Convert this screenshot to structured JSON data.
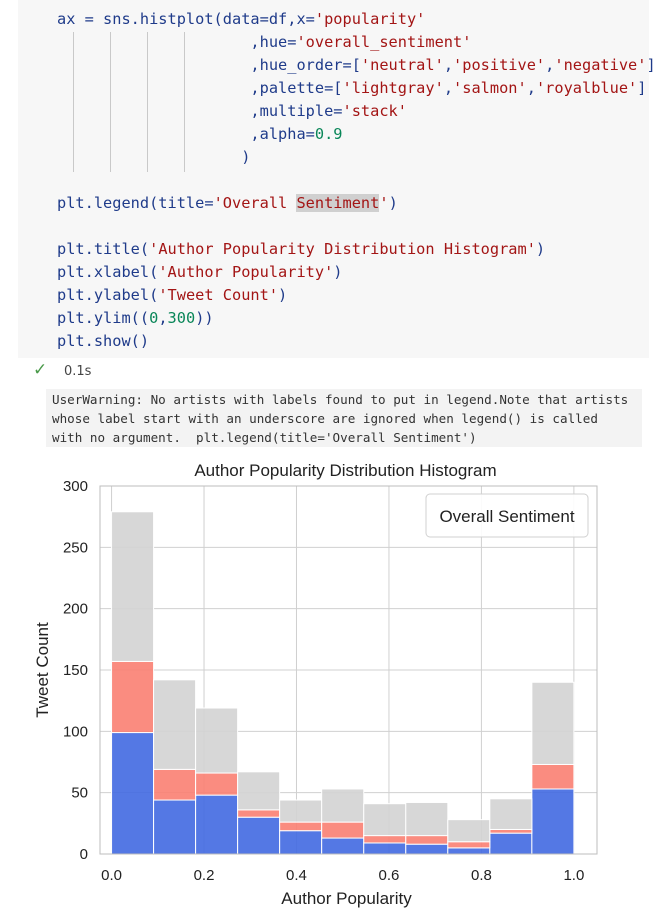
{
  "code": {
    "lines": [
      [
        {
          "t": "ax = sns.histplot(data=df,x=",
          "c": "k"
        },
        {
          "t": "'popularity'",
          "c": "s"
        }
      ],
      [
        {
          "t": "                     ,hue=",
          "c": "k"
        },
        {
          "t": "'overall_sentiment'",
          "c": "s"
        }
      ],
      [
        {
          "t": "                     ,hue_order=[",
          "c": "k"
        },
        {
          "t": "'neutral'",
          "c": "s"
        },
        {
          "t": ",",
          "c": "k"
        },
        {
          "t": "'positive'",
          "c": "s"
        },
        {
          "t": ",",
          "c": "k"
        },
        {
          "t": "'negative'",
          "c": "s"
        },
        {
          "t": "]",
          "c": "k"
        }
      ],
      [
        {
          "t": "                     ,palette=[",
          "c": "k"
        },
        {
          "t": "'lightgray'",
          "c": "s"
        },
        {
          "t": ",",
          "c": "k"
        },
        {
          "t": "'salmon'",
          "c": "s"
        },
        {
          "t": ",",
          "c": "k"
        },
        {
          "t": "'royalblue'",
          "c": "s"
        },
        {
          "t": "]",
          "c": "k"
        }
      ],
      [
        {
          "t": "                     ,multiple=",
          "c": "k"
        },
        {
          "t": "'stack'",
          "c": "s"
        }
      ],
      [
        {
          "t": "                     ,alpha=",
          "c": "k"
        },
        {
          "t": "0.9",
          "c": "n"
        }
      ],
      [
        {
          "t": "                    )",
          "c": "k"
        }
      ],
      [],
      [
        {
          "t": "plt.legend(title=",
          "c": "k"
        },
        {
          "t": "'Overall ",
          "c": "s"
        },
        {
          "t": "Sentiment",
          "c": "s hl"
        },
        {
          "t": "'",
          "c": "s"
        },
        {
          "t": ")",
          "c": "k"
        }
      ],
      [],
      [
        {
          "t": "plt.title(",
          "c": "k"
        },
        {
          "t": "'Author Popularity Distribution Histogram'",
          "c": "s"
        },
        {
          "t": ")",
          "c": "k"
        }
      ],
      [
        {
          "t": "plt.xlabel(",
          "c": "k"
        },
        {
          "t": "'Author Popularity'",
          "c": "s"
        },
        {
          "t": ")",
          "c": "k"
        }
      ],
      [
        {
          "t": "plt.ylabel(",
          "c": "k"
        },
        {
          "t": "'Tweet Count'",
          "c": "s"
        },
        {
          "t": ")",
          "c": "k"
        }
      ],
      [
        {
          "t": "plt.ylim((",
          "c": "k"
        },
        {
          "t": "0",
          "c": "n"
        },
        {
          "t": ",",
          "c": "k"
        },
        {
          "t": "300",
          "c": "n"
        },
        {
          "t": "))",
          "c": "k"
        }
      ],
      [
        {
          "t": "plt.show()",
          "c": "k"
        }
      ]
    ]
  },
  "status": {
    "icon": "check-icon",
    "time": "0.1s"
  },
  "warning": {
    "text": "UserWarning: No artists with labels found to put in legend.Note that artists\nwhose label start with an underscore are ignored when legend() is called\nwith no argument.  plt.legend(title='Overall Sentiment')"
  },
  "chart_data": {
    "type": "bar",
    "title": "Author Popularity Distribution Histogram",
    "xlabel": "Author Popularity",
    "ylabel": "Tweet Count",
    "xlim": [
      -0.025,
      1.05
    ],
    "ylim": [
      0,
      300
    ],
    "xticks": [
      "0.0",
      "0.2",
      "0.4",
      "0.6",
      "0.8",
      "1.0"
    ],
    "yticks": [
      "0",
      "50",
      "100",
      "150",
      "200",
      "250",
      "300"
    ],
    "legend_title": "Overall Sentiment",
    "legend_position": "top-right",
    "grid": true,
    "bin_edges": [
      0.0,
      0.0909,
      0.1818,
      0.2727,
      0.3636,
      0.4545,
      0.5455,
      0.6364,
      0.7273,
      0.8182,
      0.9091,
      1.0
    ],
    "stacked": true,
    "series": [
      {
        "color": "#4169e1",
        "values": [
          99,
          44,
          48,
          30,
          19,
          13,
          9,
          8,
          5,
          17,
          53
        ]
      },
      {
        "color": "#fa8072",
        "values": [
          58,
          25,
          18,
          6,
          7,
          13,
          6,
          7,
          5,
          3,
          20
        ]
      },
      {
        "color": "#d3d3d3",
        "values": [
          122,
          73,
          53,
          31,
          18,
          27,
          26,
          27,
          18,
          25,
          67
        ]
      }
    ]
  }
}
